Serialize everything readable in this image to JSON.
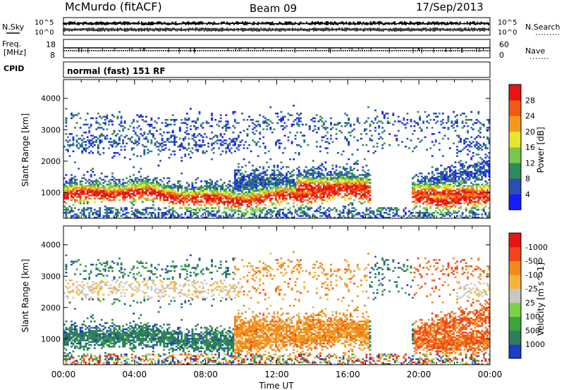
{
  "header": {
    "station": "McMurdo (fitACF)",
    "beam": "Beam 09",
    "date": "17/Sep/2013"
  },
  "strip1": {
    "left_label": "N.Sky",
    "right_label": "N.Search",
    "left_ticks": [
      "10^5",
      "10^0"
    ],
    "right_ticks": [
      "10^5",
      "10^0"
    ]
  },
  "strip2": {
    "left_label_top": "Freq.",
    "left_label_bottom": "[MHz]",
    "right_label": "Nave",
    "left_ticks": [
      "18",
      "8"
    ],
    "right_ticks": [
      "60",
      "0"
    ]
  },
  "cpid": {
    "label": "CPID",
    "text": "normal (fast) 151 RF"
  },
  "chart_data": [
    {
      "type": "heatmap",
      "title": "",
      "ylabel": "Slant Range [km]",
      "xlabel": "",
      "ylim": [
        180,
        4600
      ],
      "yticks": [
        1000,
        2000,
        3000,
        4000
      ],
      "colorbar": {
        "label": "Power [dB]",
        "ticks": [
          "4",
          "8",
          "12",
          "16",
          "20",
          "24",
          "28"
        ],
        "colors": [
          "#1a1aff",
          "#2a4fb8",
          "#2f8a5a",
          "#78c850",
          "#e6e62a",
          "#f39a1e",
          "#f05a14",
          "#e81414"
        ]
      }
    },
    {
      "type": "heatmap",
      "title": "",
      "ylabel": "Slant Range [km]",
      "xlabel": "Time UT",
      "ylim": [
        180,
        4600
      ],
      "yticks": [
        1000,
        2000,
        3000,
        4000
      ],
      "xticks": [
        "00:00",
        "04:00",
        "08:00",
        "12:00",
        "16:00",
        "20:00",
        "00:00"
      ],
      "colorbar": {
        "label": "Velocity [m s^-1]",
        "ticks": [
          "1000",
          "500",
          "100",
          "25",
          "-25",
          "-100",
          "-500",
          "-1000"
        ],
        "colors": [
          "#1e3cc8",
          "#2e7d5e",
          "#3aa53c",
          "#7cd04a",
          "#c8c8c0",
          "#f6b43c",
          "#f08a1c",
          "#f0461c",
          "#e81414"
        ]
      }
    }
  ]
}
